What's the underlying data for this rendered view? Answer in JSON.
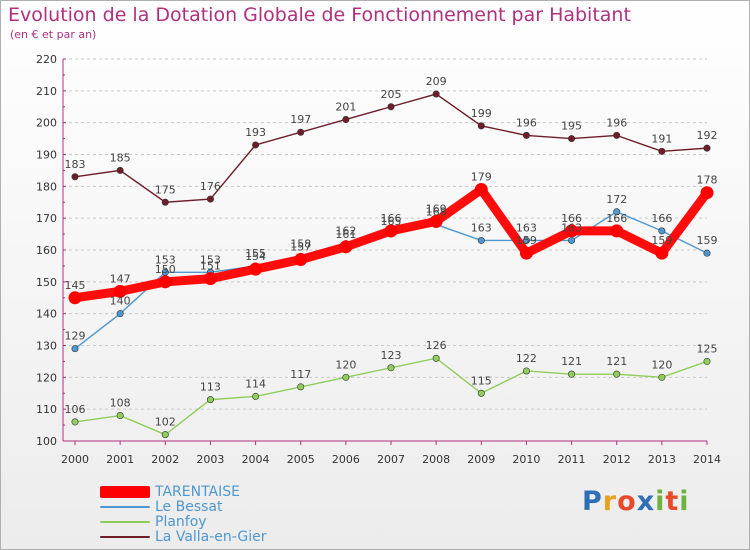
{
  "header": {
    "title": "Evolution de la Dotation Globale de Fonctionnement par Habitant",
    "subtitle": "(en € et par an)"
  },
  "brand": {
    "text": "Proxiti",
    "letters": [
      "P",
      "r",
      "o",
      "x",
      "i",
      "t",
      "i"
    ],
    "colors": [
      "#2f6fb8",
      "#e8a21c",
      "#e84a2a",
      "#2f6fb8",
      "#6cb33f",
      "#e84a2a",
      "#6cb33f"
    ]
  },
  "colors": {
    "title": "#b03080",
    "axis": "#b03080",
    "grid": "#c8c8c8"
  },
  "chart_data": {
    "type": "line",
    "title": "Evolution de la Dotation Globale de Fonctionnement par Habitant",
    "subtitle": "(en € et par an)",
    "xlabel": "",
    "ylabel": "",
    "ylim": [
      100,
      220
    ],
    "yticks": [
      100,
      110,
      120,
      130,
      140,
      150,
      160,
      170,
      180,
      190,
      200,
      210,
      220
    ],
    "grid": "horizontal-dashed",
    "legend_position": "bottom-left",
    "x": [
      "2000",
      "2001",
      "2002",
      "2003",
      "2004",
      "2005",
      "2006",
      "2007",
      "2008",
      "2009",
      "2010",
      "2011",
      "2012",
      "2013",
      "2014"
    ],
    "series": [
      {
        "name": "TARENTAISE",
        "color": "#ff0000",
        "emphasis": true,
        "values": [
          145,
          147,
          150,
          151,
          154,
          157,
          161,
          166,
          169,
          179,
          159,
          166,
          166,
          159,
          178
        ],
        "labels": [
          "145",
          "147",
          "150",
          "151",
          "154",
          "157",
          "161",
          "166",
          "169",
          "179",
          "159",
          "166",
          "166",
          "159",
          "178"
        ]
      },
      {
        "name": "Le Bessat",
        "color": "#4f97d0",
        "values": [
          129,
          140,
          153,
          153,
          155,
          158,
          162,
          165,
          168,
          163,
          163,
          163,
          172,
          166,
          159
        ],
        "labels": [
          "129",
          "140",
          "153",
          "153",
          "155",
          "158",
          "162",
          "165",
          "168",
          "163",
          "163",
          "163",
          "172",
          "166",
          "159"
        ]
      },
      {
        "name": "Planfoy",
        "color": "#8fce5a",
        "values": [
          106,
          108,
          102,
          113,
          114,
          117,
          120,
          123,
          126,
          115,
          122,
          121,
          121,
          120,
          125
        ],
        "labels": [
          "106",
          "108",
          "102",
          "113",
          "114",
          "117",
          "120",
          "123",
          "126",
          "115",
          "122",
          "121",
          "121",
          "120",
          "125"
        ]
      },
      {
        "name": "La Valla-en-Gier",
        "color": "#6e1e28",
        "values": [
          183,
          185,
          175,
          176,
          193,
          197,
          201,
          205,
          209,
          199,
          196,
          195,
          196,
          191,
          192
        ],
        "labels": [
          "183",
          "185",
          "175",
          "176",
          "193",
          "197",
          "201",
          "205",
          "209",
          "199",
          "196",
          "195",
          "196",
          "191",
          "192"
        ]
      }
    ]
  }
}
